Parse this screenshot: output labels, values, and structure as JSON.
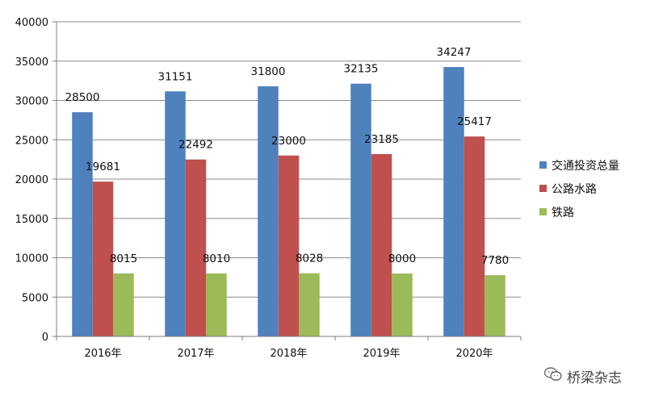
{
  "chart_data": {
    "type": "bar",
    "categories": [
      "2016年",
      "2017年",
      "2018年",
      "2019年",
      "2020年"
    ],
    "series": [
      {
        "name": "交通投资总量",
        "values": [
          28500,
          31151,
          31800,
          32135,
          34247
        ],
        "color": "#4F81BD"
      },
      {
        "name": "公路水路",
        "values": [
          19681,
          22492,
          23000,
          23185,
          25417
        ],
        "color": "#C0504D"
      },
      {
        "name": "铁路",
        "values": [
          8015,
          8010,
          8028,
          8000,
          7780
        ],
        "color": "#9BBB59"
      }
    ],
    "yticks": [
      "0",
      "5000",
      "10000",
      "15000",
      "20000",
      "25000",
      "30000",
      "35000",
      "40000"
    ],
    "ylim": [
      0,
      40000
    ],
    "grid": true,
    "legend_position": "right"
  },
  "watermark": {
    "text": "桥梁杂志",
    "icon": "wechat-icon"
  }
}
